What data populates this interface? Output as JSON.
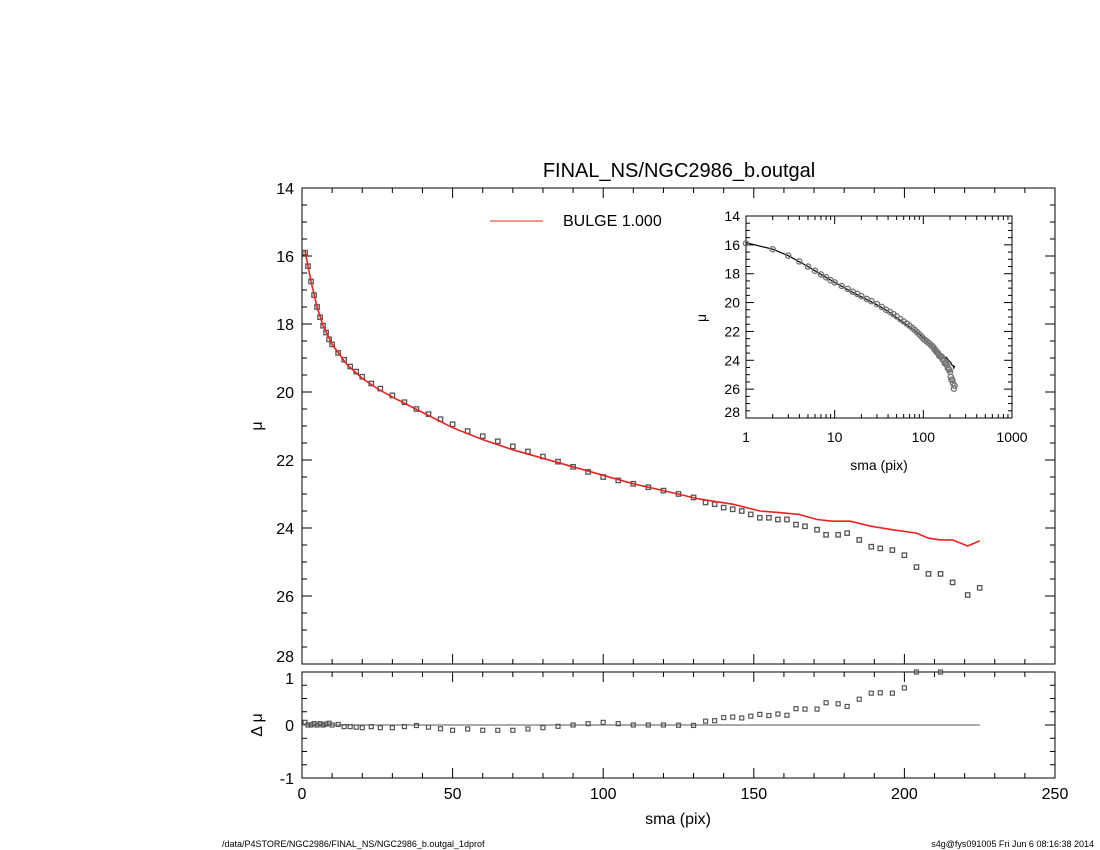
{
  "chart_data": {
    "type": "scatter",
    "title": "FINAL_NS/NGC2986_b.outgal",
    "xlabel": "sma (pix)",
    "ylabel": "μ",
    "residual_ylabel": "Δ μ",
    "xlim": [
      0,
      250
    ],
    "ylim": [
      28,
      14
    ],
    "residual_ylim": [
      -1,
      1
    ],
    "x_ticks": [
      "0",
      "50",
      "100",
      "150",
      "200",
      "250"
    ],
    "y_ticks": [
      "14",
      "16",
      "18",
      "20",
      "22",
      "24",
      "26",
      "28"
    ],
    "residual_ticks": [
      "1",
      "0",
      "-1"
    ],
    "legend": {
      "label": "BULGE  1.000",
      "color": "#e8231f",
      "placement": "top-center"
    },
    "colors": {
      "data": "#555555",
      "model": "#e8231f",
      "axis": "#000000"
    },
    "data": {
      "sma": [
        1,
        2,
        3,
        4,
        5,
        6,
        7,
        8,
        9,
        10,
        12,
        14,
        16,
        18,
        20,
        23,
        26,
        30,
        34,
        38,
        42,
        46,
        50,
        55,
        60,
        65,
        70,
        75,
        80,
        85,
        90,
        95,
        100,
        105,
        110,
        115,
        120,
        125,
        130,
        134,
        137,
        140,
        143,
        146,
        149,
        152,
        155,
        158,
        161,
        164,
        167,
        171,
        174,
        178,
        181,
        185,
        189,
        192,
        196,
        200,
        204,
        208,
        212,
        216,
        221,
        225
      ],
      "mu": [
        15.9,
        16.3,
        16.75,
        17.15,
        17.5,
        17.8,
        18.05,
        18.25,
        18.45,
        18.6,
        18.85,
        19.05,
        19.25,
        19.4,
        19.55,
        19.75,
        19.9,
        20.1,
        20.3,
        20.5,
        20.65,
        20.8,
        20.95,
        21.15,
        21.3,
        21.45,
        21.6,
        21.75,
        21.9,
        22.05,
        22.2,
        22.35,
        22.5,
        22.6,
        22.7,
        22.8,
        22.9,
        23.0,
        23.1,
        23.25,
        23.3,
        23.4,
        23.45,
        23.5,
        23.6,
        23.7,
        23.7,
        23.75,
        23.75,
        23.9,
        23.95,
        24.05,
        24.2,
        24.2,
        24.15,
        24.35,
        24.55,
        24.6,
        24.65,
        24.8,
        25.15,
        25.35,
        25.35,
        25.6,
        25.97,
        25.76
      ]
    },
    "model": {
      "name": "BULGE",
      "sma": [
        1,
        2,
        3,
        5,
        7,
        10,
        15,
        20,
        25,
        30,
        40,
        50,
        60,
        70,
        80,
        90,
        100,
        110,
        120,
        132,
        143,
        152,
        159,
        165,
        171,
        176,
        182,
        189,
        196,
        204,
        208,
        212,
        216,
        221,
        225
      ],
      "mu": [
        15.85,
        16.3,
        16.75,
        17.5,
        18.05,
        18.6,
        19.2,
        19.6,
        19.9,
        20.15,
        20.6,
        21.05,
        21.4,
        21.7,
        21.95,
        22.2,
        22.45,
        22.7,
        22.9,
        23.15,
        23.3,
        23.5,
        23.55,
        23.6,
        23.75,
        23.8,
        23.8,
        23.95,
        24.05,
        24.15,
        24.3,
        24.35,
        24.35,
        24.53,
        24.38
      ]
    },
    "inset": {
      "type": "scatter-logx",
      "xlabel": "sma (pix)",
      "ylabel": "μ",
      "xlim": [
        1,
        1000
      ],
      "ylim": [
        28,
        14
      ],
      "x_ticks": [
        "1",
        "10",
        "100",
        "1000"
      ],
      "y_ticks": [
        "14",
        "16",
        "18",
        "20",
        "22",
        "24",
        "26",
        "28"
      ]
    }
  },
  "footer": {
    "path": "/data/P4STORE/NGC2986/FINAL_NS/NGC2986_b.outgal_1dprof",
    "stamp": "s4g@fys091005  Fri Jun  6 08:16:38 2014"
  }
}
